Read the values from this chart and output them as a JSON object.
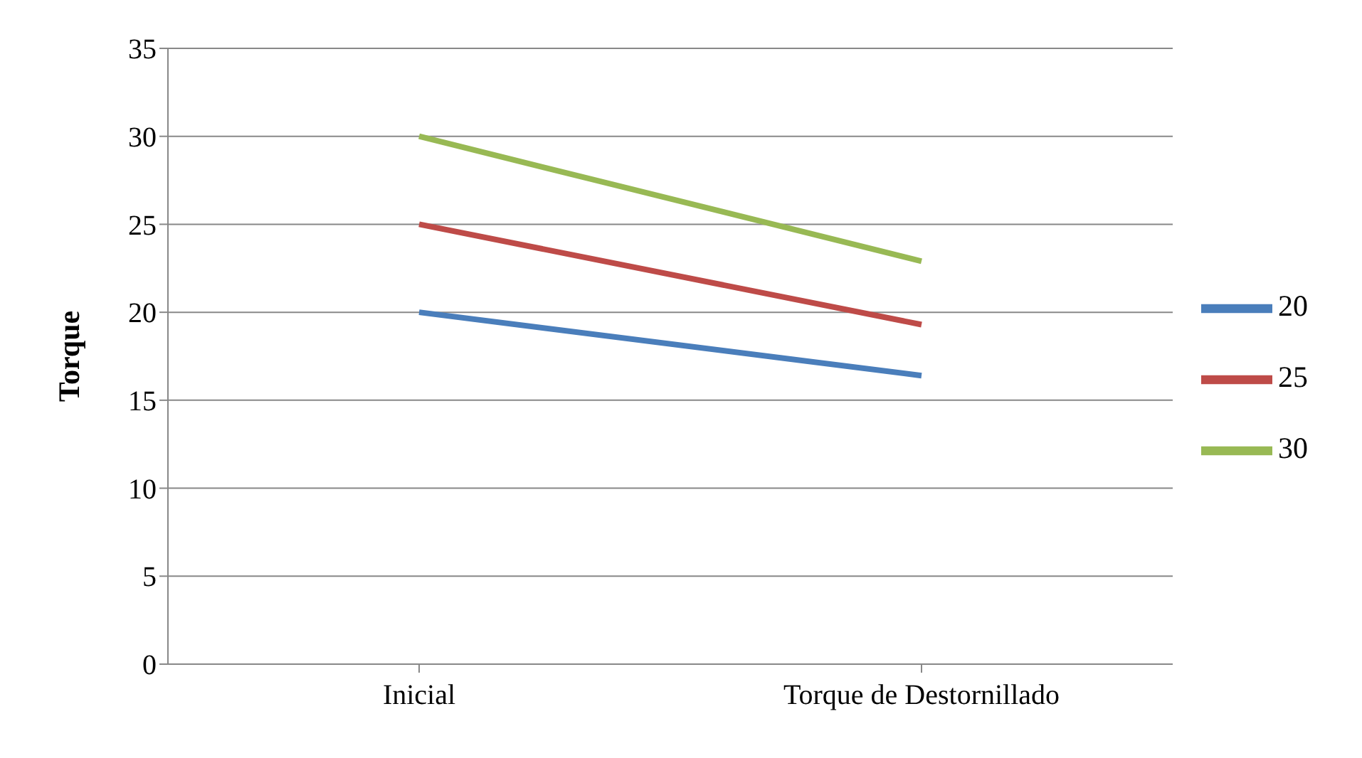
{
  "chart_data": {
    "type": "line",
    "ylabel": "Torque",
    "categories": [
      "Inicial",
      "Torque de Destornillado"
    ],
    "series": [
      {
        "name": "20",
        "color": "#4a7ebb",
        "values": [
          20,
          16.4
        ]
      },
      {
        "name": "25",
        "color": "#be4b48",
        "values": [
          25,
          19.3
        ]
      },
      {
        "name": "30",
        "color": "#98b954",
        "values": [
          30,
          22.9
        ]
      }
    ],
    "ylim": [
      0,
      35
    ],
    "yticks": [
      0,
      5,
      10,
      15,
      20,
      25,
      30,
      35
    ],
    "grid": "y",
    "legend": "right",
    "marker": "none"
  }
}
